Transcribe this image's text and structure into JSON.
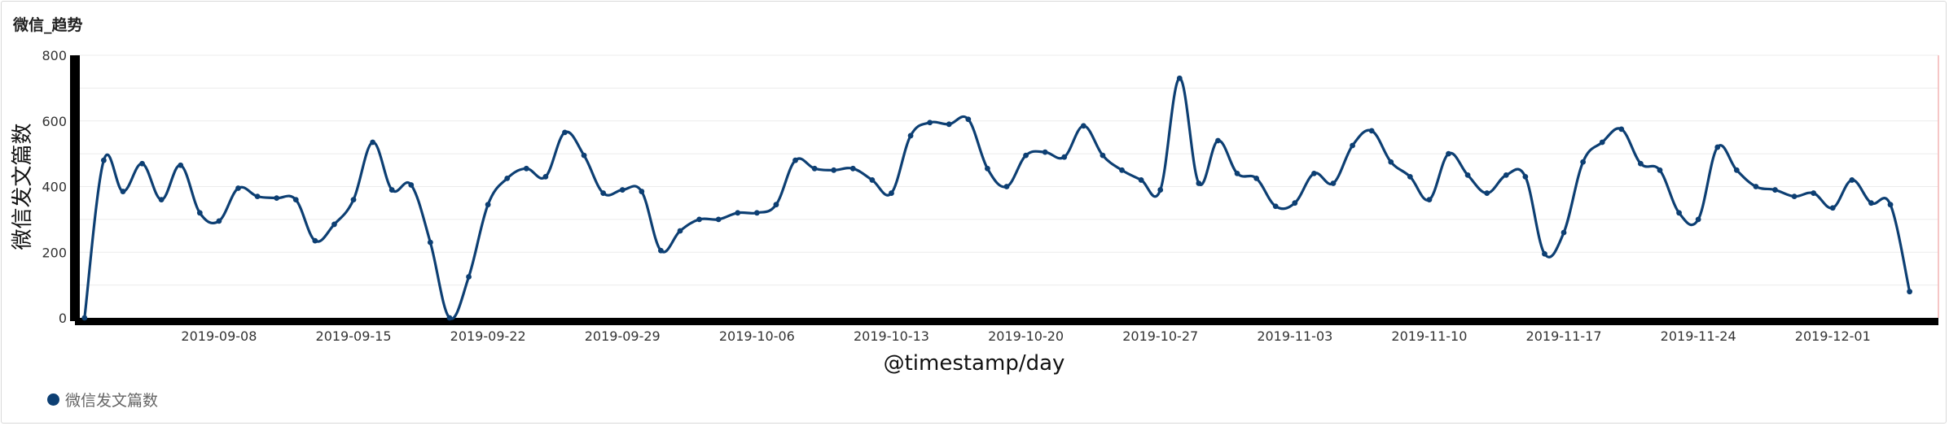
{
  "panel": {
    "title": "微信_趋势"
  },
  "chart_data": {
    "type": "line",
    "xlabel": "@timestamp/day",
    "ylabel": "微信发文篇数",
    "ylim": [
      0,
      800
    ],
    "yticks": [
      0,
      200,
      400,
      600,
      800
    ],
    "x_start": "2019-09-01",
    "x_end": "2019-12-06",
    "xticks": [
      "2019-09-08",
      "2019-09-15",
      "2019-09-22",
      "2019-09-29",
      "2019-10-06",
      "2019-10-13",
      "2019-10-20",
      "2019-10-27",
      "2019-11-03",
      "2019-11-10",
      "2019-11-17",
      "2019-11-24",
      "2019-12-01"
    ],
    "grid": true,
    "legend_position": "bottom-left",
    "series": [
      {
        "name": "微信发文篇数",
        "color": "#0d3f73",
        "values": [
          0,
          480,
          385,
          470,
          360,
          465,
          320,
          295,
          395,
          370,
          365,
          360,
          235,
          285,
          360,
          535,
          390,
          405,
          230,
          0,
          125,
          345,
          425,
          455,
          430,
          565,
          495,
          380,
          390,
          385,
          205,
          265,
          300,
          300,
          320,
          320,
          345,
          480,
          455,
          450,
          455,
          420,
          380,
          555,
          595,
          590,
          605,
          455,
          400,
          495,
          505,
          490,
          585,
          495,
          450,
          420,
          390,
          730,
          410,
          540,
          440,
          425,
          340,
          350,
          440,
          410,
          525,
          570,
          475,
          430,
          360,
          500,
          435,
          380,
          435,
          430,
          195,
          260,
          475,
          535,
          575,
          470,
          450,
          320,
          300,
          520,
          450,
          400,
          390,
          370,
          380,
          335,
          420,
          350,
          345,
          80
        ]
      }
    ]
  }
}
